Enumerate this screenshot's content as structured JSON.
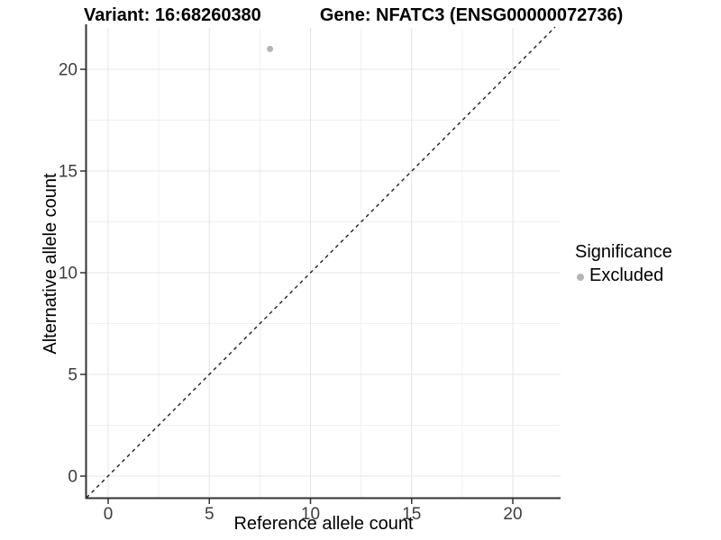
{
  "title": {
    "variant": "Variant: 16:68260380",
    "gene": "Gene: NFATC3 (ENSG00000072736)"
  },
  "legend": {
    "title": "Significance",
    "items": [
      {
        "label": "Excluded",
        "color": "#b5b5b5"
      }
    ]
  },
  "chart_data": {
    "type": "scatter",
    "title": "Variant: 16:68260380  |  Gene: NFATC3 (ENSG00000072736)",
    "xlabel": "Reference allele count",
    "ylabel": "Alternative allele count",
    "x_ticks": [
      0,
      5,
      10,
      15,
      20
    ],
    "y_ticks": [
      0,
      5,
      10,
      15,
      20
    ],
    "xlim": [
      -1.1,
      22.4
    ],
    "ylim": [
      -1.1,
      22.1
    ],
    "grid": {
      "major": true,
      "minor": true
    },
    "legend_position": "right",
    "series": [
      {
        "name": "Excluded",
        "color": "#b5b5b5",
        "points": [
          {
            "x": 8,
            "y": 21
          }
        ]
      }
    ],
    "reference_line": {
      "kind": "identity (y = x)",
      "style": "dashed",
      "color": "#1f1f1f"
    },
    "style_colors": {
      "grid_major": "#e4e4e4",
      "grid_minor": "#f0f0f0",
      "axis_line": "#333333",
      "tick_text": "#3d3d3d"
    }
  }
}
